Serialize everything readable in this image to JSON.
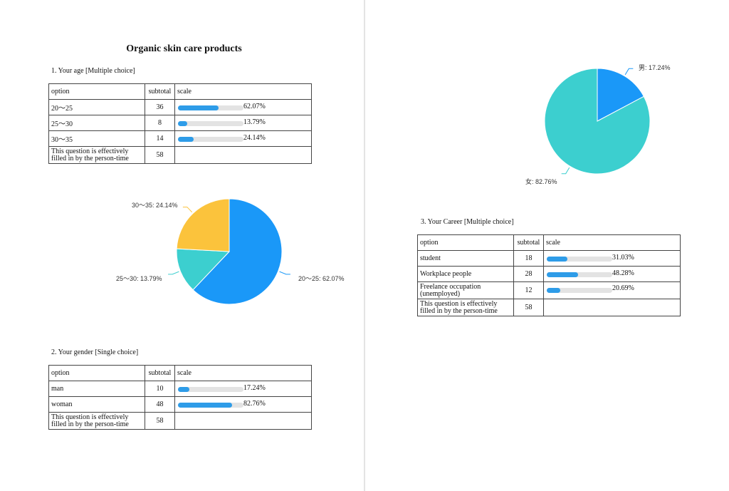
{
  "document": {
    "title": "Organic skin care products"
  },
  "columns": {
    "option": "option",
    "subtotal": "subtotal",
    "scale": "scale"
  },
  "q1": {
    "title": "1. Your age [Multiple choice]",
    "rows": [
      {
        "option": "20～25",
        "subtotal": "36",
        "percent": 62.07,
        "percent_label": "62.07%"
      },
      {
        "option": "25～30",
        "subtotal": "8",
        "percent": 13.79,
        "percent_label": "13.79%"
      },
      {
        "option": "30～35",
        "subtotal": "14",
        "percent": 24.14,
        "percent_label": "24.14%"
      }
    ],
    "effective_label_1": "This question is effectively",
    "effective_label_2": "filled in by the person-time",
    "effective_total": "58"
  },
  "q2": {
    "title": "2. Your gender [Single choice]",
    "rows": [
      {
        "option": "man",
        "subtotal": "10",
        "percent": 17.24,
        "percent_label": "17.24%"
      },
      {
        "option": "woman",
        "subtotal": "48",
        "percent": 82.76,
        "percent_label": "82.76%"
      }
    ],
    "effective_label_1": "This question is effectively",
    "effective_label_2": "filled in by the person-time",
    "effective_total": "58"
  },
  "q3": {
    "title": "3. Your Career [Multiple choice]",
    "rows": [
      {
        "option": "student",
        "subtotal": "18",
        "percent": 31.03,
        "percent_label": "31.03%"
      },
      {
        "option": "Workplace people",
        "subtotal": "28",
        "percent": 48.28,
        "percent_label": "48.28%"
      },
      {
        "option": "Freelance occupation (unemployed)",
        "subtotal": "12",
        "percent": 20.69,
        "percent_label": "20.69%"
      }
    ],
    "effective_label_1": "This question is effectively",
    "effective_label_2": "filled in by the person-time",
    "effective_total": "58"
  },
  "chart_data": [
    {
      "type": "pie",
      "categories": [
        "20～25",
        "25～30",
        "30～35"
      ],
      "values": [
        62.07,
        13.79,
        24.14
      ],
      "labels": [
        "20～25: 62.07%",
        "25～30: 13.79%",
        "30～35: 24.14%"
      ],
      "colors": [
        "#1a98f8",
        "#3ccfcf",
        "#fbc33c"
      ]
    },
    {
      "type": "pie",
      "categories": [
        "男",
        "女"
      ],
      "values": [
        17.24,
        82.76
      ],
      "labels": [
        "男: 17.24%",
        "女: 82.76%"
      ],
      "colors": [
        "#1a98f8",
        "#3ccfcf"
      ]
    }
  ]
}
